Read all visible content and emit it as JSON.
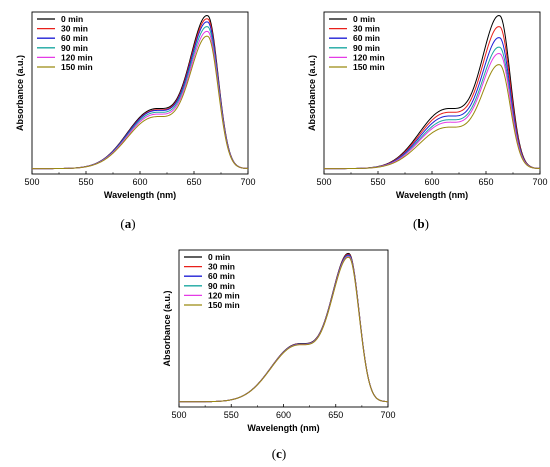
{
  "colors": {
    "0 min": "#000000",
    "30 min": "#e8201a",
    "60 min": "#1f1fd6",
    "90 min": "#1aa7a0",
    "120 min": "#e43be6",
    "150 min": "#9a8a10"
  },
  "chart_data": [
    {
      "panel": "a",
      "caption": "a",
      "type": "line",
      "xlabel": "Wavelength (nm)",
      "ylabel": "Absorbance (a.u.)",
      "xlim": [
        500,
        700
      ],
      "xticks": [
        "500",
        "550",
        "600",
        "650",
        "700"
      ],
      "ylim": [
        0,
        1.05
      ],
      "y_tick_labels": false,
      "legend": "top-left",
      "series": [
        {
          "name": "0 min",
          "peak": 1.0,
          "shoulder": 0.52,
          "base": 0.035
        },
        {
          "name": "30 min",
          "peak": 0.98,
          "shoulder": 0.51,
          "base": 0.035
        },
        {
          "name": "60 min",
          "peak": 0.96,
          "shoulder": 0.505,
          "base": 0.035
        },
        {
          "name": "90 min",
          "peak": 0.93,
          "shoulder": 0.49,
          "base": 0.035
        },
        {
          "name": "120 min",
          "peak": 0.9,
          "shoulder": 0.475,
          "base": 0.035
        },
        {
          "name": "150 min",
          "peak": 0.87,
          "shoulder": 0.455,
          "base": 0.035
        }
      ]
    },
    {
      "panel": "b",
      "caption": "b",
      "type": "line",
      "xlabel": "Wavelength (nm)",
      "ylabel": "Absorbance (a.u.)",
      "xlim": [
        500,
        700
      ],
      "xticks": [
        "500",
        "550",
        "600",
        "650",
        "700"
      ],
      "ylim": [
        0,
        1.05
      ],
      "y_tick_labels": false,
      "legend": "top-left",
      "series": [
        {
          "name": "0 min",
          "peak": 1.0,
          "shoulder": 0.52,
          "base": 0.035
        },
        {
          "name": "30 min",
          "peak": 0.93,
          "shoulder": 0.49,
          "base": 0.035
        },
        {
          "name": "60 min",
          "peak": 0.86,
          "shoulder": 0.46,
          "base": 0.035
        },
        {
          "name": "90 min",
          "peak": 0.8,
          "shoulder": 0.43,
          "base": 0.035
        },
        {
          "name": "120 min",
          "peak": 0.76,
          "shoulder": 0.41,
          "base": 0.035
        },
        {
          "name": "150 min",
          "peak": 0.69,
          "shoulder": 0.37,
          "base": 0.035
        }
      ]
    },
    {
      "panel": "c",
      "caption": "c",
      "type": "line",
      "xlabel": "Wavelength (nm)",
      "ylabel": "Absorbance (a.u.)",
      "xlim": [
        500,
        700
      ],
      "xticks": [
        "500",
        "550",
        "600",
        "650",
        "700"
      ],
      "ylim": [
        0,
        1.05
      ],
      "y_tick_labels": false,
      "legend": "top-left",
      "series": [
        {
          "name": "0 min",
          "peak": 1.0,
          "shoulder": 0.52,
          "base": 0.035
        },
        {
          "name": "30 min",
          "peak": 0.995,
          "shoulder": 0.518,
          "base": 0.035
        },
        {
          "name": "60 min",
          "peak": 0.99,
          "shoulder": 0.516,
          "base": 0.035
        },
        {
          "name": "90 min",
          "peak": 0.985,
          "shoulder": 0.514,
          "base": 0.035
        },
        {
          "name": "120 min",
          "peak": 0.98,
          "shoulder": 0.512,
          "base": 0.035
        },
        {
          "name": "150 min",
          "peak": 0.975,
          "shoulder": 0.51,
          "base": 0.035
        }
      ]
    }
  ]
}
